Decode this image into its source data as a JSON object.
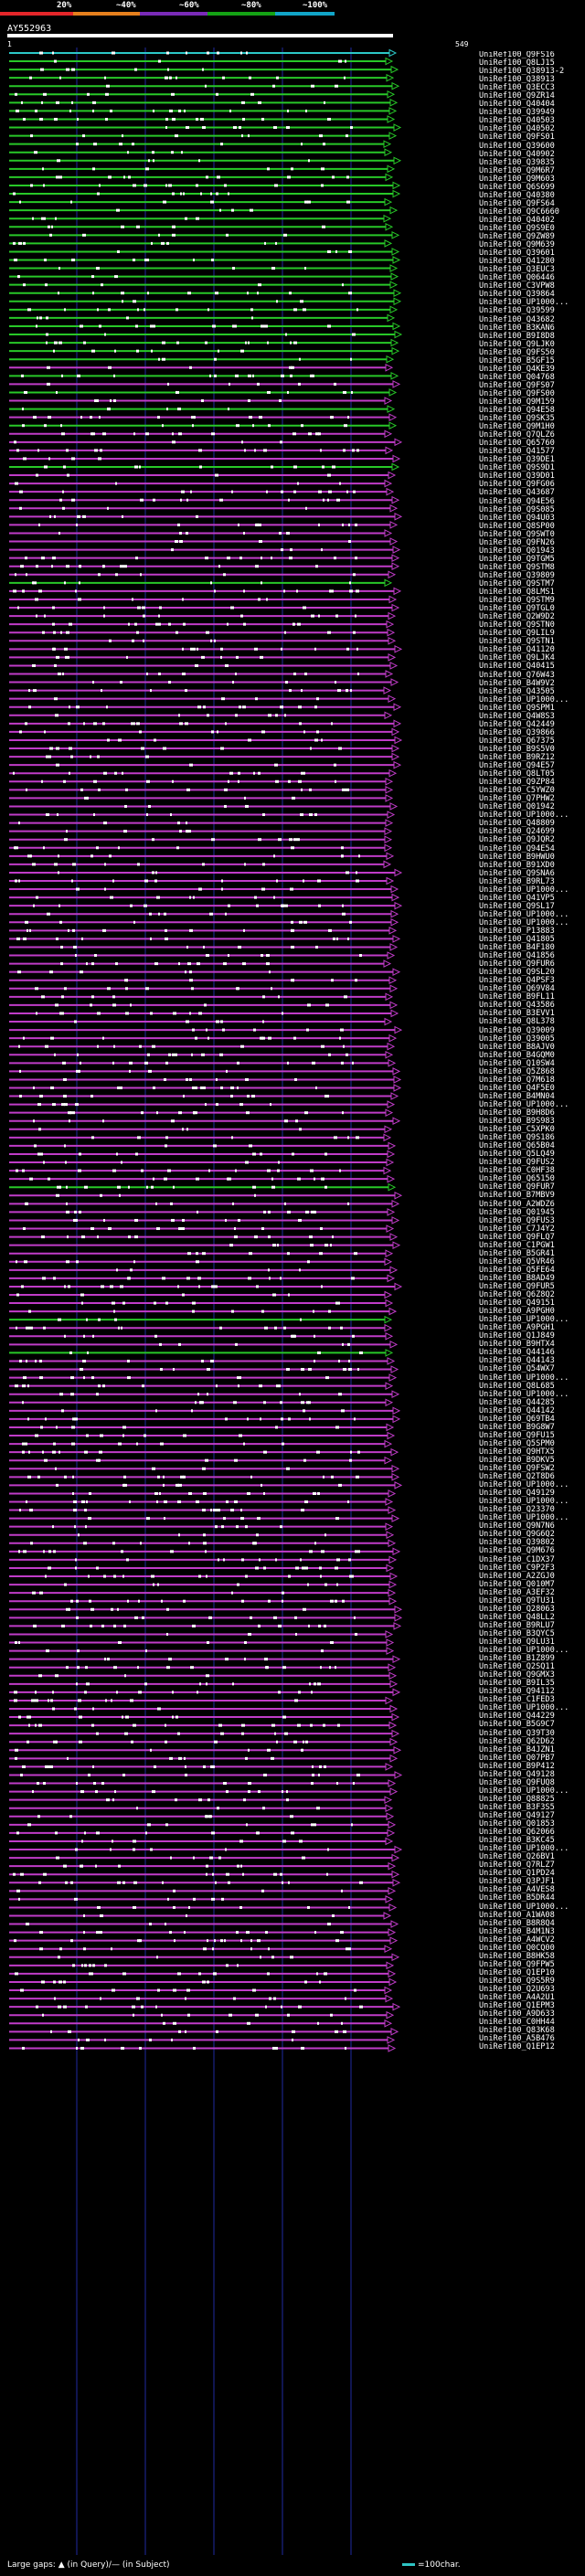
{
  "legend": {
    "labels": [
      "20%",
      "~40%",
      "~60%",
      "~80%",
      "~100%"
    ],
    "colors": [
      "#e5262a",
      "#e6801d",
      "#7a2bb8",
      "#14a314",
      "#11a5c8"
    ]
  },
  "query": {
    "name": "AY552963",
    "start": "1",
    "end": "549"
  },
  "hit_colors": {
    "green": "#28c828",
    "magenta": "#c03cc8",
    "cyan": "#2cc8c8",
    "white": "#ffffff",
    "orange": "#ff9a1a"
  },
  "hits": [
    {
      "id": "UniRef100_Q9FS16",
      "c": "c"
    },
    {
      "id": "UniRef100_Q8LJ15",
      "c": "g"
    },
    {
      "id": "UniRef100_Q38913-2",
      "c": "g"
    },
    {
      "id": "UniRef100_Q38913",
      "c": "g"
    },
    {
      "id": "UniRef100_Q3ECC3",
      "c": "g"
    },
    {
      "id": "UniRef100_Q9ZR14",
      "c": "g"
    },
    {
      "id": "UniRef100_Q40404",
      "c": "g"
    },
    {
      "id": "UniRef100_Q39949",
      "c": "g"
    },
    {
      "id": "UniRef100_Q40503",
      "c": "g"
    },
    {
      "id": "UniRef100_Q40502",
      "c": "g"
    },
    {
      "id": "UniRef100_Q9FS01",
      "c": "g"
    },
    {
      "id": "UniRef100_Q39600",
      "c": "g"
    },
    {
      "id": "UniRef100_Q40902",
      "c": "g"
    },
    {
      "id": "UniRef100_Q39835",
      "c": "g"
    },
    {
      "id": "UniRef100_Q9M6R7",
      "c": "g"
    },
    {
      "id": "UniRef100_Q9M603",
      "c": "g"
    },
    {
      "id": "UniRef100_Q6S699",
      "c": "g"
    },
    {
      "id": "UniRef100_Q40380",
      "c": "g"
    },
    {
      "id": "UniRef100_Q9FS64",
      "c": "g"
    },
    {
      "id": "UniRef100_Q9C6660",
      "c": "g"
    },
    {
      "id": "UniRef100_Q40402",
      "c": "g"
    },
    {
      "id": "UniRef100_Q9S9E0",
      "c": "g"
    },
    {
      "id": "UniRef100_Q9ZW89",
      "c": "g"
    },
    {
      "id": "UniRef100_Q9M639",
      "c": "g"
    },
    {
      "id": "UniRef100_Q39601",
      "c": "g"
    },
    {
      "id": "UniRef100_Q41280",
      "c": "g"
    },
    {
      "id": "UniRef100_Q3EUC3",
      "c": "g"
    },
    {
      "id": "UniRef100_Q06446",
      "c": "g"
    },
    {
      "id": "UniRef100_C3VPW8",
      "c": "g"
    },
    {
      "id": "UniRef100_Q39864",
      "c": "g"
    },
    {
      "id": "UniRef100_UP1000...",
      "c": "g"
    },
    {
      "id": "UniRef100_Q39599",
      "c": "g"
    },
    {
      "id": "UniRef100_Q43682",
      "c": "g"
    },
    {
      "id": "UniRef100_B3KAN6",
      "c": "g"
    },
    {
      "id": "UniRef100_B9I8D8",
      "c": "g"
    },
    {
      "id": "UniRef100_Q9LJK0",
      "c": "g"
    },
    {
      "id": "UniRef100_Q9FS50",
      "c": "g"
    },
    {
      "id": "UniRef100_B5GF15",
      "c": "g"
    },
    {
      "id": "UniRef100_Q4KE39",
      "c": "m"
    },
    {
      "id": "UniRef100_Q04768",
      "c": "g"
    },
    {
      "id": "UniRef100_Q9FS07",
      "c": "m"
    },
    {
      "id": "UniRef100_Q9FS00",
      "c": "g"
    },
    {
      "id": "UniRef100_Q9M159",
      "c": "m"
    },
    {
      "id": "UniRef100_Q94E58",
      "c": "g"
    },
    {
      "id": "UniRef100_Q9SK35",
      "c": "m"
    },
    {
      "id": "UniRef100_Q9M1H0",
      "c": "g"
    },
    {
      "id": "UniRef100_Q7QLZ6",
      "c": "m"
    },
    {
      "id": "UniRef100_Q65760",
      "c": "m"
    },
    {
      "id": "UniRef100_Q41577",
      "c": "m"
    },
    {
      "id": "UniRef100_Q39DE1",
      "c": "m"
    },
    {
      "id": "UniRef100_Q9S9D1",
      "c": "g"
    },
    {
      "id": "UniRef100_Q39D01",
      "c": "m"
    },
    {
      "id": "UniRef100_Q9FG06",
      "c": "m"
    },
    {
      "id": "UniRef100_Q43687",
      "c": "m"
    },
    {
      "id": "UniRef100_Q94E56",
      "c": "m"
    },
    {
      "id": "UniRef100_Q9S085",
      "c": "m"
    },
    {
      "id": "UniRef100_Q94U03",
      "c": "m"
    },
    {
      "id": "UniRef100_Q8SP00",
      "c": "m"
    },
    {
      "id": "UniRef100_Q9SWT0",
      "c": "m"
    },
    {
      "id": "UniRef100_Q9FN26",
      "c": "m"
    },
    {
      "id": "UniRef100_Q01943",
      "c": "m"
    },
    {
      "id": "UniRef100_Q9TGM5",
      "c": "m"
    },
    {
      "id": "UniRef100_Q9STM8",
      "c": "m"
    },
    {
      "id": "UniRef100_Q39809",
      "c": "m"
    },
    {
      "id": "UniRef100_Q9STM7",
      "c": "g"
    },
    {
      "id": "UniRef100_Q8LMS1",
      "c": "m"
    },
    {
      "id": "UniRef100_Q9STM9",
      "c": "m"
    },
    {
      "id": "UniRef100_Q9TGL0",
      "c": "m"
    },
    {
      "id": "UniRef100_Q2W9D2",
      "c": "m"
    },
    {
      "id": "UniRef100_Q9STN0",
      "c": "m"
    },
    {
      "id": "UniRef100_Q9LIL9",
      "c": "m"
    },
    {
      "id": "UniRef100_Q9STN1",
      "c": "m"
    },
    {
      "id": "UniRef100_Q41120",
      "c": "m"
    },
    {
      "id": "UniRef100_Q9LJK4",
      "c": "m"
    },
    {
      "id": "UniRef100_Q40415",
      "c": "m"
    },
    {
      "id": "UniRef100_Q76W43",
      "c": "m"
    },
    {
      "id": "UniRef100_B4W9V2",
      "c": "m"
    },
    {
      "id": "UniRef100_Q43505",
      "c": "m"
    },
    {
      "id": "UniRef100_UP1000...",
      "c": "m"
    },
    {
      "id": "UniRef100_Q9SPM1",
      "c": "m"
    },
    {
      "id": "UniRef100_Q4W8S3",
      "c": "m"
    },
    {
      "id": "UniRef100_Q42449",
      "c": "m"
    },
    {
      "id": "UniRef100_Q39866",
      "c": "m"
    },
    {
      "id": "UniRef100_Q67375",
      "c": "m"
    },
    {
      "id": "UniRef100_B9S5V0",
      "c": "m"
    },
    {
      "id": "UniRef100_B9RZ12",
      "c": "m"
    },
    {
      "id": "UniRef100_Q94E57",
      "c": "m"
    },
    {
      "id": "UniRef100_Q8LT05",
      "c": "m"
    },
    {
      "id": "UniRef100_Q9ZP84",
      "c": "m"
    },
    {
      "id": "UniRef100_C5YWZ0",
      "c": "m"
    },
    {
      "id": "UniRef100_Q7PHW2",
      "c": "m"
    },
    {
      "id": "UniRef100_Q01942",
      "c": "m"
    },
    {
      "id": "UniRef100_UP1000...",
      "c": "m"
    },
    {
      "id": "UniRef100_Q48809",
      "c": "m"
    },
    {
      "id": "UniRef100_Q24699",
      "c": "m"
    },
    {
      "id": "UniRef100_Q9JQR2",
      "c": "m"
    },
    {
      "id": "UniRef100_Q94E54",
      "c": "m"
    },
    {
      "id": "UniRef100_B9HWU0",
      "c": "m"
    },
    {
      "id": "UniRef100_B91XD0",
      "c": "m"
    },
    {
      "id": "UniRef100_Q9SNA6",
      "c": "m"
    },
    {
      "id": "UniRef100_B9RL73",
      "c": "m"
    },
    {
      "id": "UniRef100_UP1000...",
      "c": "m"
    },
    {
      "id": "UniRef100_Q41VP5",
      "c": "m"
    },
    {
      "id": "UniRef100_Q9SL17",
      "c": "m"
    },
    {
      "id": "UniRef100_UP1000...",
      "c": "m"
    },
    {
      "id": "UniRef100_UP1000...",
      "c": "m"
    },
    {
      "id": "UniRef100_P13883",
      "c": "m"
    },
    {
      "id": "UniRef100_Q41805",
      "c": "m"
    },
    {
      "id": "UniRef100_B4F180",
      "c": "m"
    },
    {
      "id": "UniRef100_Q41856",
      "c": "m"
    },
    {
      "id": "UniRef100_Q9FUR6",
      "c": "m"
    },
    {
      "id": "UniRef100_Q9SL20",
      "c": "m"
    },
    {
      "id": "UniRef100_Q4PSF3",
      "c": "m"
    },
    {
      "id": "UniRef100_Q69V84",
      "c": "m"
    },
    {
      "id": "UniRef100_B9FL11",
      "c": "m"
    },
    {
      "id": "UniRef100_Q43586",
      "c": "m"
    },
    {
      "id": "UniRef100_B3EVV1",
      "c": "m"
    },
    {
      "id": "UniRef100_Q8L378",
      "c": "m"
    },
    {
      "id": "UniRef100_Q39009",
      "c": "m"
    },
    {
      "id": "UniRef100_Q39005",
      "c": "m"
    },
    {
      "id": "UniRef100_B8AJV0",
      "c": "m"
    },
    {
      "id": "UniRef100_B4GQM0",
      "c": "m"
    },
    {
      "id": "UniRef100_Q10SW4",
      "c": "m"
    },
    {
      "id": "UniRef100_Q5Z868",
      "c": "m"
    },
    {
      "id": "UniRef100_Q7M618",
      "c": "m"
    },
    {
      "id": "UniRef100_Q4F5E0",
      "c": "m"
    },
    {
      "id": "UniRef100_B4MN04",
      "c": "m"
    },
    {
      "id": "UniRef100_UP1000...",
      "c": "m"
    },
    {
      "id": "UniRef100_B9H8D6",
      "c": "m"
    },
    {
      "id": "UniRef100_B9S983",
      "c": "m"
    },
    {
      "id": "UniRef100_C5XPK0",
      "c": "m"
    },
    {
      "id": "UniRef100_Q9S186",
      "c": "m"
    },
    {
      "id": "UniRef100_Q65B04",
      "c": "m"
    },
    {
      "id": "UniRef100_Q5LQ49",
      "c": "m"
    },
    {
      "id": "UniRef100_Q9FUS2",
      "c": "m"
    },
    {
      "id": "UniRef100_C0HF38",
      "c": "m"
    },
    {
      "id": "UniRef100_Q65150",
      "c": "m"
    },
    {
      "id": "UniRef100_Q9FUR7",
      "c": "g"
    },
    {
      "id": "UniRef100_B7MBV9",
      "c": "m"
    },
    {
      "id": "UniRef100_A2WDZ6",
      "c": "m"
    },
    {
      "id": "UniRef100_Q01945",
      "c": "m"
    },
    {
      "id": "UniRef100_Q9FUS3",
      "c": "m"
    },
    {
      "id": "UniRef100_C7J4Y2",
      "c": "m"
    },
    {
      "id": "UniRef100_Q9FLQ7",
      "c": "m"
    },
    {
      "id": "UniRef100_C1PGW1",
      "c": "m"
    },
    {
      "id": "UniRef100_B5GR41",
      "c": "m"
    },
    {
      "id": "UniRef100_Q5VR46",
      "c": "m"
    },
    {
      "id": "UniRef100_Q5FE64",
      "c": "m"
    },
    {
      "id": "UniRef100_B8AD49",
      "c": "m"
    },
    {
      "id": "UniRef100_Q9FUR5",
      "c": "m"
    },
    {
      "id": "UniRef100_Q6Z8Q2",
      "c": "m"
    },
    {
      "id": "UniRef100_Q49151",
      "c": "m"
    },
    {
      "id": "UniRef100_A9PGH0",
      "c": "m"
    },
    {
      "id": "UniRef100_UP1000...",
      "c": "g"
    },
    {
      "id": "UniRef100_A9PGH1",
      "c": "m"
    },
    {
      "id": "UniRef100_Q1J849",
      "c": "m"
    },
    {
      "id": "UniRef100_B9HTX4",
      "c": "m"
    },
    {
      "id": "UniRef100_Q44146",
      "c": "g"
    },
    {
      "id": "UniRef100_Q44143",
      "c": "m"
    },
    {
      "id": "UniRef100_Q54WX7",
      "c": "m"
    },
    {
      "id": "UniRef100_UP1000...",
      "c": "m"
    },
    {
      "id": "UniRef100_Q8L685",
      "c": "m"
    },
    {
      "id": "UniRef100_UP1000...",
      "c": "m"
    },
    {
      "id": "UniRef100_Q44285",
      "c": "m"
    },
    {
      "id": "UniRef100_Q44142",
      "c": "m"
    },
    {
      "id": "UniRef100_Q69TB4",
      "c": "m"
    },
    {
      "id": "UniRef100_B9G8W7",
      "c": "m"
    },
    {
      "id": "UniRef100_Q9FU15",
      "c": "m"
    },
    {
      "id": "UniRef100_Q5SPM0",
      "c": "m"
    },
    {
      "id": "UniRef100_Q9HTX5",
      "c": "m"
    },
    {
      "id": "UniRef100_B9DKV5",
      "c": "m"
    },
    {
      "id": "UniRef100_Q9FSW2",
      "c": "m"
    },
    {
      "id": "UniRef100_Q2T8D6",
      "c": "m"
    },
    {
      "id": "UniRef100_UP1000...",
      "c": "m"
    },
    {
      "id": "UniRef100_Q49129",
      "c": "m"
    },
    {
      "id": "UniRef100_UP1000...",
      "c": "m"
    },
    {
      "id": "UniRef100_Q23370",
      "c": "m"
    },
    {
      "id": "UniRef100_UP1000...",
      "c": "m"
    },
    {
      "id": "UniRef100_Q9N7N6",
      "c": "m"
    },
    {
      "id": "UniRef100_Q9G6Q2",
      "c": "m"
    },
    {
      "id": "UniRef100_Q39802",
      "c": "m"
    },
    {
      "id": "UniRef100_Q9M676",
      "c": "m"
    },
    {
      "id": "UniRef100_C1DX37",
      "c": "m"
    },
    {
      "id": "UniRef100_C9P2F3",
      "c": "m"
    },
    {
      "id": "UniRef100_A2ZGJ0",
      "c": "m"
    },
    {
      "id": "UniRef100_Q010M7",
      "c": "m"
    },
    {
      "id": "UniRef100_A3EF32",
      "c": "m"
    },
    {
      "id": "UniRef100_Q9TU31",
      "c": "m"
    },
    {
      "id": "UniRef100_Q28063",
      "c": "m"
    },
    {
      "id": "UniRef100_Q48LL2",
      "c": "m"
    },
    {
      "id": "UniRef100_B9RLU7",
      "c": "m"
    },
    {
      "id": "UniRef100_B3QYC5",
      "c": "m"
    },
    {
      "id": "UniRef100_Q9LU31",
      "c": "m"
    },
    {
      "id": "UniRef100_UP1000...",
      "c": "m"
    },
    {
      "id": "UniRef100_B1Z899",
      "c": "m"
    },
    {
      "id": "UniRef100_Q2SQ11",
      "c": "m"
    },
    {
      "id": "UniRef100_Q9GMX3",
      "c": "m"
    },
    {
      "id": "UniRef100_B9IL35",
      "c": "m"
    },
    {
      "id": "UniRef100_Q94112",
      "c": "m"
    },
    {
      "id": "UniRef100_C1FED3",
      "c": "m"
    },
    {
      "id": "UniRef100_UP1000...",
      "c": "m"
    },
    {
      "id": "UniRef100_Q44229",
      "c": "m"
    },
    {
      "id": "UniRef100_B5G9C7",
      "c": "m"
    },
    {
      "id": "UniRef100_Q39T30",
      "c": "m"
    },
    {
      "id": "UniRef100_Q62D62",
      "c": "m"
    },
    {
      "id": "UniRef100_B4JZN1",
      "c": "m"
    },
    {
      "id": "UniRef100_Q07PB7",
      "c": "m"
    },
    {
      "id": "UniRef100_B9P412",
      "c": "m"
    },
    {
      "id": "UniRef100_Q49128",
      "c": "m"
    },
    {
      "id": "UniRef100_Q9FUQ8",
      "c": "m"
    },
    {
      "id": "UniRef100_UP1000...",
      "c": "m"
    },
    {
      "id": "UniRef100_Q88825",
      "c": "m"
    },
    {
      "id": "UniRef100_B3F3S5",
      "c": "m"
    },
    {
      "id": "UniRef100_Q49127",
      "c": "m"
    },
    {
      "id": "UniRef100_Q01853",
      "c": "m"
    },
    {
      "id": "UniRef100_Q62066",
      "c": "m"
    },
    {
      "id": "UniRef100_B3KC45",
      "c": "m"
    },
    {
      "id": "UniRef100_UP1000...",
      "c": "m"
    },
    {
      "id": "UniRef100_Q26BV1",
      "c": "m"
    },
    {
      "id": "UniRef100_Q7RLZ7",
      "c": "m"
    },
    {
      "id": "UniRef100_Q1PD24",
      "c": "m"
    },
    {
      "id": "UniRef100_Q3PJF1",
      "c": "m"
    },
    {
      "id": "UniRef100_A4VES8",
      "c": "m"
    },
    {
      "id": "UniRef100_B5DR44",
      "c": "m"
    },
    {
      "id": "UniRef100_UP1000...",
      "c": "m"
    },
    {
      "id": "UniRef100_A1WA08",
      "c": "m"
    },
    {
      "id": "UniRef100_B8R8Q4",
      "c": "m"
    },
    {
      "id": "UniRef100_B4M1N3",
      "c": "m"
    },
    {
      "id": "UniRef100_A4WCV2",
      "c": "m"
    },
    {
      "id": "UniRef100_Q0CQ00",
      "c": "m"
    },
    {
      "id": "UniRef100_B8HK58",
      "c": "m"
    },
    {
      "id": "UniRef100_Q9FPW5",
      "c": "m"
    },
    {
      "id": "UniRef100_Q1EP10",
      "c": "m"
    },
    {
      "id": "UniRef100_Q9S5R9",
      "c": "m"
    },
    {
      "id": "UniRef100_Q2U693",
      "c": "m"
    },
    {
      "id": "UniRef100_A4A2U1",
      "c": "m"
    },
    {
      "id": "UniRef100_Q1EPM3",
      "c": "m"
    },
    {
      "id": "UniRef100_A9D633",
      "c": "m"
    },
    {
      "id": "UniRef100_C0HH44",
      "c": "m"
    },
    {
      "id": "UniRef100_Q83K68",
      "c": "m"
    },
    {
      "id": "UniRef100_A5B476",
      "c": "m"
    },
    {
      "id": "UniRef100_Q1EP12",
      "c": "m"
    }
  ],
  "footer": {
    "gaps": "Large gaps: ▲ (in Query)/— (in Subject)",
    "scale": "=100char."
  }
}
